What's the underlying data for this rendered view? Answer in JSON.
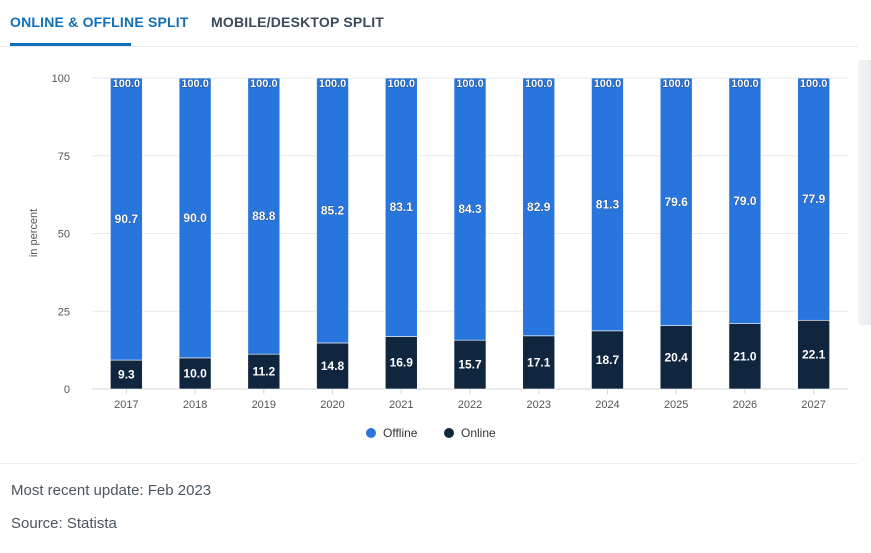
{
  "tabs": [
    {
      "label": "ONLINE & OFFLINE SPLIT",
      "active": true
    },
    {
      "label": "MOBILE/DESKTOP SPLIT",
      "active": false
    }
  ],
  "chart_data": {
    "type": "bar",
    "stacked": true,
    "categories": [
      "2017",
      "2018",
      "2019",
      "2020",
      "2021",
      "2022",
      "2023",
      "2024",
      "2025",
      "2026",
      "2027"
    ],
    "series": [
      {
        "name": "Online",
        "color": "#10263f",
        "values": [
          9.3,
          10.0,
          11.2,
          14.8,
          16.9,
          15.7,
          17.1,
          18.7,
          20.4,
          21.0,
          22.1
        ]
      },
      {
        "name": "Offline",
        "color": "#2876dd",
        "values": [
          90.7,
          90.0,
          88.8,
          85.2,
          83.1,
          84.3,
          82.9,
          81.3,
          79.6,
          79.0,
          77.9
        ]
      }
    ],
    "totals": [
      100.0,
      100.0,
      100.0,
      100.0,
      100.0,
      100.0,
      100.0,
      100.0,
      100.0,
      100.0,
      100.0
    ],
    "ylabel": "in percent",
    "ylim": [
      0,
      100
    ],
    "yticks": [
      0,
      25,
      50,
      75,
      100
    ],
    "legend": [
      {
        "name": "Offline",
        "color": "#2876dd"
      },
      {
        "name": "Online",
        "color": "#10263f"
      }
    ],
    "legend_position": "bottom",
    "grid": true
  },
  "footer": {
    "update": "Most recent update: Feb 2023",
    "source": "Source: Statista"
  }
}
